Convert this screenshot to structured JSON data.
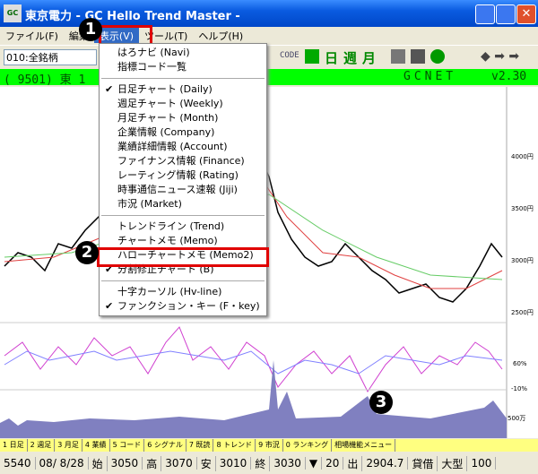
{
  "window": {
    "icon": "GC",
    "title": "東京電力 - GC Hello Trend Master -"
  },
  "menu": [
    "ファイル(F)",
    "編集",
    "表示(V)",
    "ツール(T)",
    "ヘルプ(H)"
  ],
  "toolbar": {
    "combo": "010:全銘柄",
    "code": "CODE",
    "buttons": [
      "日",
      "週",
      "月"
    ]
  },
  "info_bar": {
    "code": "( 9501) 東 1",
    "source": "GCNET",
    "version": "v2.30"
  },
  "dropdown": [
    [
      {
        "label": "はろナビ (Navi)",
        "checked": false
      },
      {
        "label": "指標コード一覧",
        "checked": false
      }
    ],
    [
      {
        "label": "日足チャート (Daily)",
        "checked": true
      },
      {
        "label": "週足チャート (Weekly)",
        "checked": false
      },
      {
        "label": "月足チャート (Month)",
        "checked": false
      },
      {
        "label": "企業情報 (Company)",
        "checked": false
      },
      {
        "label": "業績詳細情報 (Account)",
        "checked": false
      },
      {
        "label": "ファイナンス情報 (Finance)",
        "checked": false
      },
      {
        "label": "レーティング情報 (Rating)",
        "checked": false
      },
      {
        "label": "時事通信ニュース速報 (Jiji)",
        "checked": false
      },
      {
        "label": "市況 (Market)",
        "checked": false
      }
    ],
    [
      {
        "label": "トレンドライン (Trend)",
        "checked": false
      },
      {
        "label": "チャートメモ (Memo)",
        "checked": false
      },
      {
        "label": "ハローチャートメモ (Memo2)",
        "checked": false
      },
      {
        "label": "分割修正チャート (B)",
        "checked": true
      }
    ],
    [
      {
        "label": "十字カーソル (Hv-line)",
        "checked": false
      },
      {
        "label": "ファンクション・キー (F・key)",
        "checked": true
      }
    ]
  ],
  "price_axis": [
    "4000円",
    "3500円",
    "3000円",
    "2500円"
  ],
  "osc_axis": [
    "60%",
    "-10%"
  ],
  "volume_axis": [
    "500万"
  ],
  "callouts": [
    "1",
    "2",
    "3"
  ],
  "tabs": [
    "1 日足",
    "2 週足",
    "3 月足",
    "4 業績",
    "5 コード",
    "6 シグナル",
    "7 既読",
    "8 トレンド",
    "9 市況",
    "0 ランキング",
    "相場機能メニュー"
  ],
  "status": [
    "5540",
    "08/ 8/28",
    "始",
    "3050",
    "高",
    "3070",
    "安",
    "3010",
    "終",
    "3030",
    "▼",
    "20",
    "出",
    "2904.7",
    "貸借",
    "大型",
    "100"
  ]
}
